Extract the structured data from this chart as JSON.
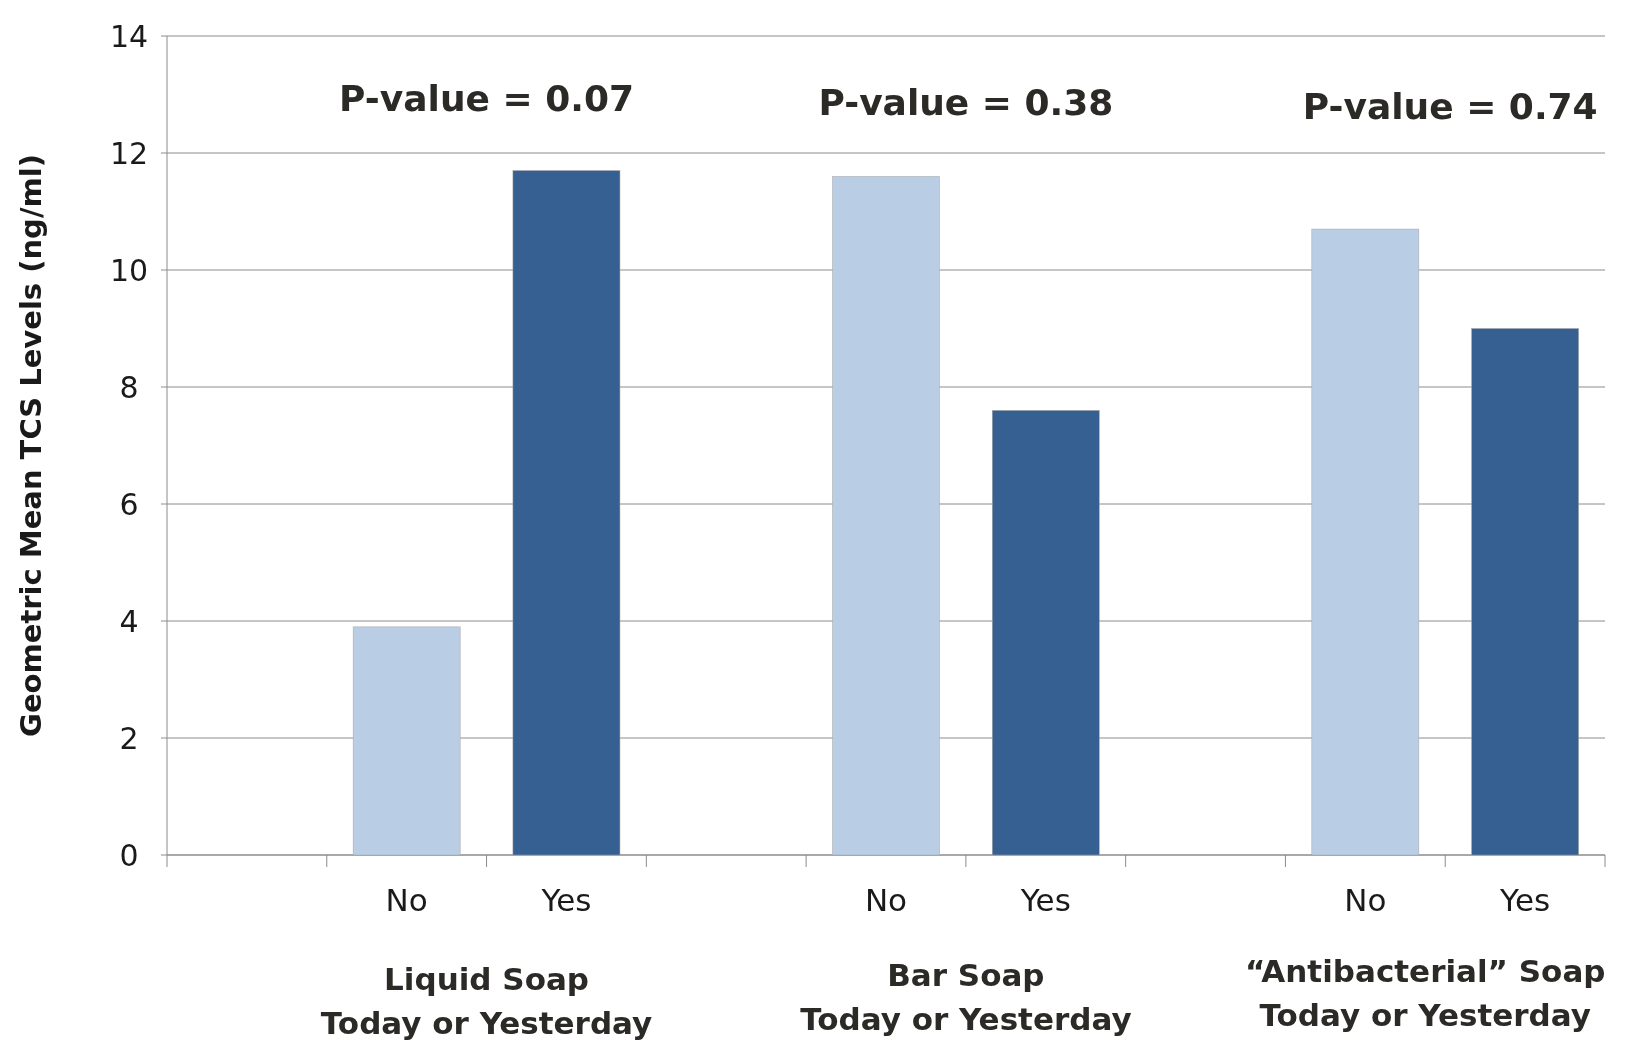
{
  "chart_data": {
    "type": "bar",
    "ylabel": "Geometric Mean TCS Levels (ng/ml)",
    "categories": [
      null,
      "No",
      "Yes",
      null,
      "No",
      "Yes",
      null,
      "No",
      "Yes"
    ],
    "values": [
      null,
      3.9,
      11.7,
      null,
      11.6,
      7.6,
      null,
      10.7,
      9.0
    ],
    "colors": [
      null,
      "#b9cde5",
      "#376092",
      null,
      "#b9cde5",
      "#376092",
      null,
      "#b9cde5",
      "#376092"
    ],
    "ylim": [
      0,
      14
    ],
    "yticks": [
      0,
      2,
      4,
      6,
      8,
      10,
      12,
      14
    ],
    "grid": "y",
    "annotations": [
      "P-value = 0.07",
      "P-value = 0.38",
      "P-value = 0.74",
      "Liquid Soap\nToday or Yesterday",
      "Bar Soap\nToday or Yesterday",
      "“Antibacterial” Soap\nToday or Yesterday"
    ]
  }
}
